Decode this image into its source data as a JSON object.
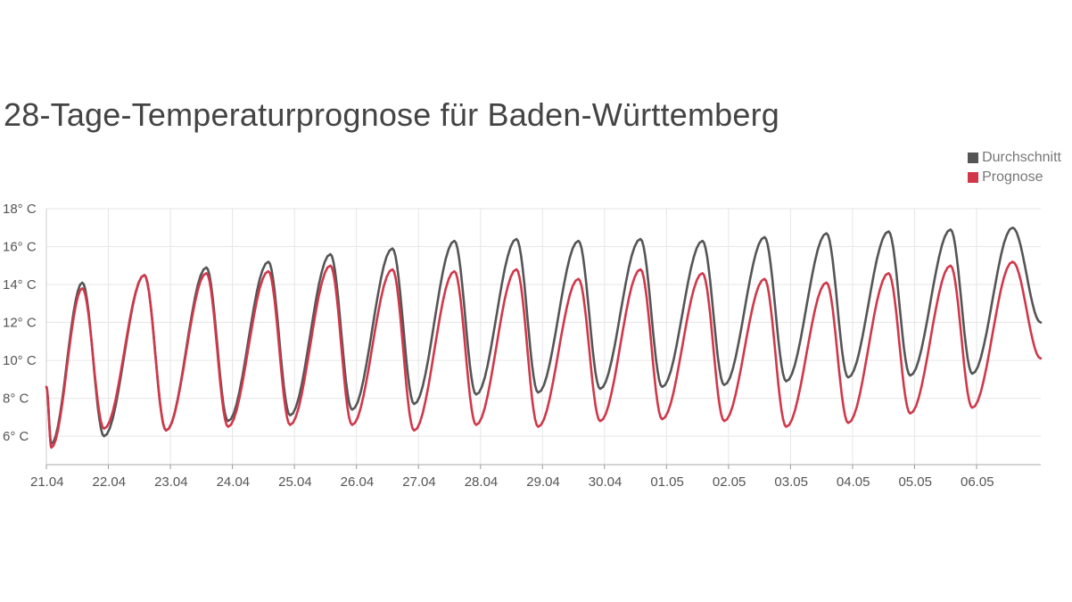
{
  "chart_data": {
    "type": "line",
    "title": "28-Tage-Temperaturprognose für Baden-Württemberg",
    "xlabel": "",
    "ylabel": "",
    "ylim": [
      4.5,
      18
    ],
    "y_ticks": [
      {
        "value": 6,
        "label": "6° C"
      },
      {
        "value": 8,
        "label": "8° C"
      },
      {
        "value": 10,
        "label": "10° C"
      },
      {
        "value": 12,
        "label": "12° C"
      },
      {
        "value": 14,
        "label": "14° C"
      },
      {
        "value": 16,
        "label": "16° C"
      },
      {
        "value": 18,
        "label": "18° C"
      }
    ],
    "x_categories": [
      "21.04",
      "22.04",
      "23.04",
      "24.04",
      "25.04",
      "26.04",
      "27.04",
      "28.04",
      "29.04",
      "30.04",
      "01.05",
      "02.05",
      "03.05",
      "04.05",
      "05.05",
      "06.05"
    ],
    "grid": true,
    "legend_position": "top-right",
    "series": [
      {
        "name": "Durchschnitt",
        "color": "#555555",
        "start": 8.6,
        "end": 12.0,
        "minima": [
          5.6,
          6.0,
          6.3,
          6.8,
          7.1,
          7.4,
          7.7,
          8.2,
          8.3,
          8.5,
          8.6,
          8.7,
          8.9,
          9.1,
          9.2,
          9.3
        ],
        "maxima": [
          14.1,
          14.5,
          14.9,
          15.2,
          15.6,
          15.9,
          16.3,
          16.4,
          16.3,
          16.4,
          16.3,
          16.5,
          16.7,
          16.8,
          16.9,
          17.0
        ]
      },
      {
        "name": "Prognose",
        "color": "#d0384a",
        "start": 8.6,
        "end": 10.1,
        "minima": [
          5.4,
          6.4,
          6.3,
          6.5,
          6.6,
          6.6,
          6.3,
          6.6,
          6.5,
          6.8,
          6.9,
          6.8,
          6.5,
          6.7,
          7.2,
          7.5
        ],
        "maxima": [
          13.8,
          14.5,
          14.6,
          14.7,
          15.0,
          14.8,
          14.7,
          14.8,
          14.3,
          14.8,
          14.6,
          14.3,
          14.1,
          14.6,
          15.0,
          15.2
        ]
      }
    ]
  }
}
